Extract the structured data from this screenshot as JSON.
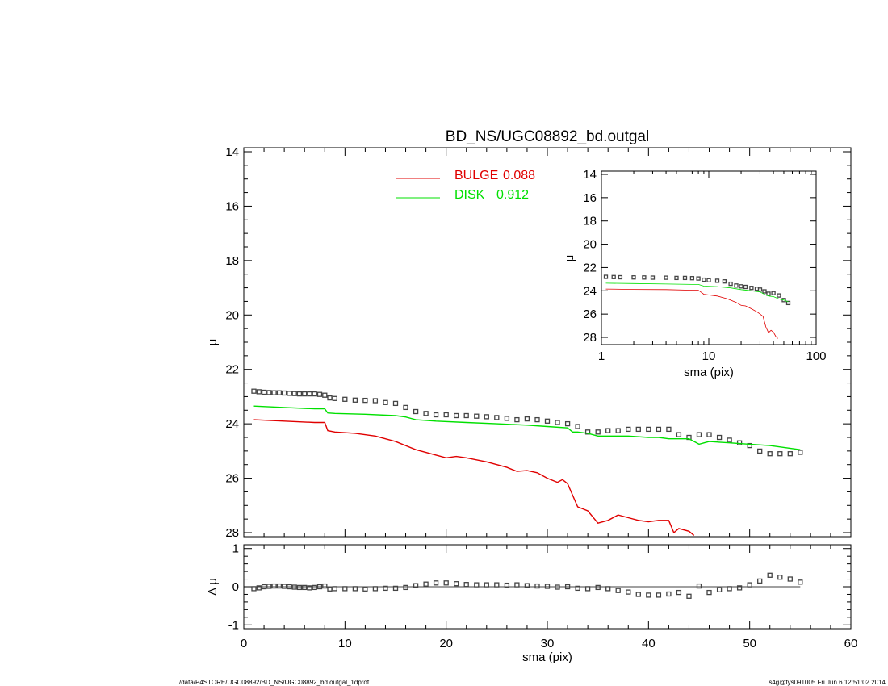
{
  "chart_data": [
    {
      "id": "main",
      "type": "line",
      "title": "BD_NS/UGC08892_bd.outgal",
      "xlabel": "",
      "ylabel": "μ",
      "xlim": [
        0,
        60
      ],
      "ylim": [
        28,
        14
      ],
      "y_inverted": true,
      "xticks": [
        0,
        10,
        20,
        30,
        40,
        50,
        60
      ],
      "yticks": [
        14,
        16,
        18,
        20,
        22,
        24,
        26,
        28
      ],
      "legend_position": "top-center",
      "legend": [
        {
          "label": "BULGE",
          "value": "0.088",
          "color": "#e00000"
        },
        {
          "label": "DISK",
          "value": "0.912",
          "color": "#00e000"
        }
      ],
      "series": [
        {
          "name": "data",
          "style": "squares",
          "color": "#444444",
          "x": [
            1,
            1.5,
            2,
            2.5,
            3,
            3.5,
            4,
            4.5,
            5,
            5.5,
            6,
            6.5,
            7,
            7.5,
            8,
            8.5,
            9,
            10,
            11,
            12,
            13,
            14,
            15,
            16,
            17,
            18,
            19,
            20,
            21,
            22,
            23,
            24,
            25,
            26,
            27,
            28,
            29,
            30,
            31,
            32,
            33,
            34,
            35,
            36,
            37,
            38,
            39,
            40,
            41,
            42,
            43,
            44,
            45,
            46,
            47,
            48,
            49,
            50,
            51,
            52,
            53,
            54,
            55
          ],
          "y": [
            22.8,
            22.82,
            22.84,
            22.85,
            22.86,
            22.86,
            22.87,
            22.88,
            22.89,
            22.9,
            22.9,
            22.9,
            22.9,
            22.92,
            22.95,
            23.05,
            23.07,
            23.1,
            23.13,
            23.14,
            23.15,
            23.22,
            23.25,
            23.4,
            23.55,
            23.62,
            23.67,
            23.67,
            23.7,
            23.7,
            23.72,
            23.74,
            23.77,
            23.8,
            23.85,
            23.82,
            23.85,
            23.9,
            23.95,
            24.0,
            24.1,
            24.3,
            24.3,
            24.25,
            24.25,
            24.2,
            24.2,
            24.2,
            24.2,
            24.2,
            24.4,
            24.5,
            24.4,
            24.4,
            24.5,
            24.6,
            24.7,
            24.8,
            25.0,
            25.1,
            25.1,
            25.1,
            25.05
          ]
        },
        {
          "name": "BULGE",
          "style": "line",
          "color": "#e00000",
          "x": [
            1,
            4,
            7,
            8,
            8.3,
            9,
            11,
            13,
            15,
            17,
            19,
            20,
            21,
            22,
            24,
            26,
            27,
            28,
            29,
            30,
            31,
            31.5,
            32,
            33,
            34,
            35,
            36,
            37,
            38,
            39,
            40,
            41,
            42,
            42.5,
            43,
            44,
            44.5
          ],
          "y": [
            23.85,
            23.9,
            23.95,
            23.95,
            24.25,
            24.3,
            24.35,
            24.45,
            24.65,
            24.95,
            25.15,
            25.25,
            25.2,
            25.25,
            25.4,
            25.6,
            25.75,
            25.72,
            25.8,
            26.0,
            26.15,
            26.05,
            26.2,
            27.05,
            27.2,
            27.65,
            27.55,
            27.35,
            27.45,
            27.55,
            27.6,
            27.55,
            27.55,
            28.0,
            27.85,
            27.95,
            28.1
          ]
        },
        {
          "name": "DISK",
          "style": "line",
          "color": "#00e000",
          "x": [
            1,
            4,
            7,
            8,
            8.3,
            9,
            12,
            15,
            16,
            17,
            19,
            22,
            25,
            28,
            30,
            32,
            32.5,
            33,
            34,
            35,
            36,
            38,
            40,
            41,
            42,
            44,
            45,
            45.5,
            46,
            48,
            50,
            52,
            55
          ],
          "y": [
            23.35,
            23.4,
            23.45,
            23.45,
            23.6,
            23.62,
            23.65,
            23.7,
            23.75,
            23.85,
            23.9,
            23.95,
            24.0,
            24.05,
            24.1,
            24.15,
            24.3,
            24.3,
            24.35,
            24.45,
            24.45,
            24.45,
            24.5,
            24.5,
            24.55,
            24.55,
            24.75,
            24.7,
            24.65,
            24.7,
            24.75,
            24.8,
            24.95
          ]
        }
      ]
    },
    {
      "id": "inset",
      "type": "line",
      "xscale": "log",
      "xlabel": "sma (pix)",
      "ylabel": "μ",
      "xlim": [
        1,
        100
      ],
      "ylim": [
        28,
        14
      ],
      "y_inverted": true,
      "xticks": [
        1,
        10,
        100
      ],
      "yticks": [
        14,
        16,
        18,
        20,
        22,
        24,
        26,
        28
      ],
      "series": [
        {
          "name": "data",
          "style": "squares",
          "color": "#444444",
          "x": [
            1.1,
            1.3,
            1.5,
            2,
            2.5,
            3,
            4,
            5,
            6,
            7,
            8,
            9,
            10,
            12,
            14,
            16,
            18,
            20,
            22,
            25,
            28,
            30,
            33,
            36,
            40,
            45,
            50,
            55
          ],
          "y": [
            22.8,
            22.82,
            22.84,
            22.85,
            22.86,
            22.87,
            22.88,
            22.9,
            22.9,
            22.92,
            22.95,
            23.05,
            23.1,
            23.14,
            23.2,
            23.4,
            23.55,
            23.62,
            23.67,
            23.75,
            23.82,
            23.9,
            24.05,
            24.25,
            24.2,
            24.4,
            24.8,
            25.05
          ]
        },
        {
          "name": "BULGE",
          "style": "line",
          "color": "#e00000",
          "x": [
            1.1,
            2,
            4,
            7,
            8,
            9,
            12,
            15,
            18,
            20,
            22,
            25,
            28,
            30,
            32,
            34,
            36,
            38,
            40,
            42,
            44
          ],
          "y": [
            23.85,
            23.88,
            23.9,
            23.95,
            23.95,
            24.3,
            24.45,
            24.7,
            25.0,
            25.25,
            25.3,
            25.55,
            25.8,
            26.0,
            26.2,
            27.1,
            27.6,
            27.4,
            27.55,
            27.9,
            28.1
          ]
        },
        {
          "name": "DISK",
          "style": "line",
          "color": "#00e000",
          "x": [
            1.1,
            2,
            4,
            7,
            8,
            9,
            12,
            16,
            20,
            25,
            30,
            33,
            36,
            40,
            45,
            50,
            55
          ],
          "y": [
            23.35,
            23.38,
            23.42,
            23.45,
            23.45,
            23.6,
            23.65,
            23.75,
            23.9,
            24.0,
            24.1,
            24.3,
            24.45,
            24.5,
            24.7,
            24.8,
            24.95
          ]
        }
      ]
    },
    {
      "id": "residual",
      "type": "scatter",
      "xlabel": "sma (pix)",
      "ylabel": "Δ μ",
      "xlim": [
        0,
        60
      ],
      "ylim": [
        -1.1,
        1.1
      ],
      "xticks": [
        0,
        10,
        20,
        30,
        40,
        50,
        60
      ],
      "yticks": [
        -1,
        0,
        1
      ],
      "zero_line": true,
      "series": [
        {
          "name": "residual",
          "style": "squares",
          "color": "#444444",
          "x": [
            1,
            1.5,
            2,
            2.5,
            3,
            3.5,
            4,
            4.5,
            5,
            5.5,
            6,
            6.5,
            7,
            7.5,
            8,
            8.5,
            9,
            10,
            11,
            12,
            13,
            14,
            15,
            16,
            17,
            18,
            19,
            20,
            21,
            22,
            23,
            24,
            25,
            26,
            27,
            28,
            29,
            30,
            31,
            32,
            33,
            34,
            35,
            36,
            37,
            38,
            39,
            40,
            41,
            42,
            43,
            44,
            45,
            46,
            47,
            48,
            49,
            50,
            51,
            52,
            53,
            54,
            55
          ],
          "y": [
            -0.05,
            -0.03,
            0.0,
            0.01,
            0.02,
            0.02,
            0.01,
            0.0,
            -0.01,
            -0.02,
            -0.02,
            -0.03,
            -0.02,
            0.0,
            0.02,
            -0.06,
            -0.05,
            -0.05,
            -0.05,
            -0.06,
            -0.05,
            -0.04,
            -0.04,
            -0.02,
            0.03,
            0.07,
            0.1,
            0.1,
            0.08,
            0.06,
            0.05,
            0.05,
            0.05,
            0.04,
            0.05,
            0.03,
            0.02,
            0.01,
            -0.01,
            0.0,
            -0.04,
            -0.05,
            -0.02,
            -0.05,
            -0.1,
            -0.14,
            -0.2,
            -0.22,
            -0.22,
            -0.19,
            -0.15,
            -0.25,
            0.02,
            -0.15,
            -0.08,
            -0.05,
            -0.03,
            0.05,
            0.15,
            0.3,
            0.25,
            0.2,
            0.12
          ]
        }
      ]
    }
  ],
  "footer": {
    "left": "/data/P4STORE/UGC08892/BD_NS/UGC08892_bd.outgal_1dprof",
    "right": "s4g@fys091005  Fri Jun  6 12:51:02 2014"
  }
}
